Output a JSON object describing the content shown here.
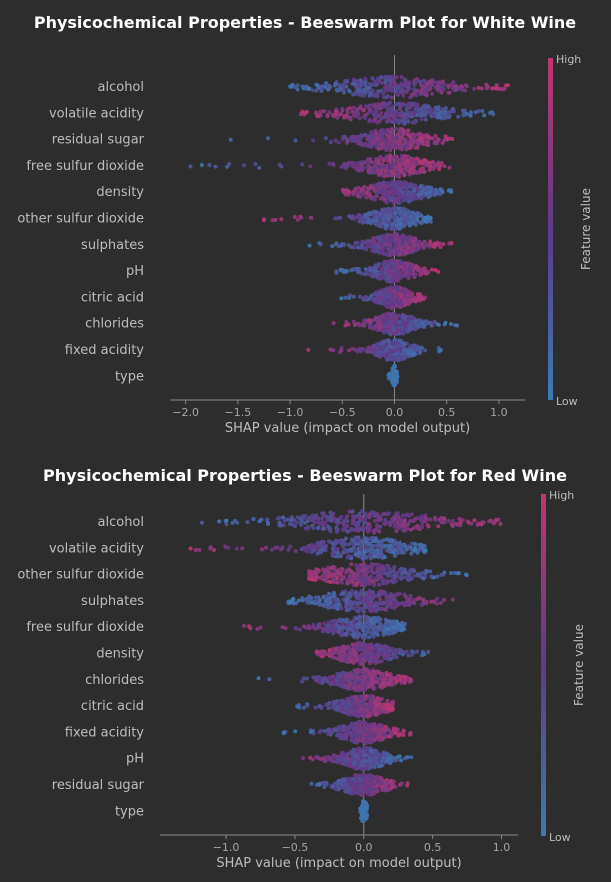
{
  "chart_data": [
    {
      "type": "scatter",
      "subtype": "beeswarm",
      "title": "Physicochemical Properties - Beeswarm Plot for White Wine",
      "xlabel": "SHAP value (impact on model output)",
      "xlim": [
        -2.15,
        1.25
      ],
      "xticks": [
        -2.0,
        -1.5,
        -1.0,
        -0.5,
        0.0,
        0.5,
        1.0
      ],
      "xtick_labels": [
        "−2.0",
        "−1.5",
        "−1.0",
        "−0.5",
        "0.0",
        "0.5",
        "1.0"
      ],
      "colorbar": {
        "high": "High",
        "low": "Low",
        "label": "Feature value",
        "low_color": "#3d7ab3",
        "mid_color": "#5d3a87",
        "high_color": "#c2366f"
      },
      "features": [
        {
          "name": "alcohol",
          "min": -1.0,
          "max": 1.1,
          "spread": 0.4,
          "dir": 1
        },
        {
          "name": "volatile acidity",
          "min": -0.9,
          "max": 0.95,
          "spread": 0.35,
          "dir": -1
        },
        {
          "name": "residual sugar",
          "min": -1.6,
          "max": 0.6,
          "spread": 0.25,
          "dir": 1
        },
        {
          "name": "free sulfur dioxide",
          "min": -2.0,
          "max": 0.55,
          "spread": 0.22,
          "dir": 1
        },
        {
          "name": "density",
          "min": -0.5,
          "max": 0.55,
          "spread": 0.22,
          "dir": -1
        },
        {
          "name": "other sulfur dioxide",
          "min": -1.4,
          "max": 0.35,
          "spread": 0.18,
          "dir": -1
        },
        {
          "name": "sulphates",
          "min": -0.9,
          "max": 0.6,
          "spread": 0.18,
          "dir": 1
        },
        {
          "name": "pH",
          "min": -0.6,
          "max": 0.45,
          "spread": 0.15,
          "dir": 1
        },
        {
          "name": "citric acid",
          "min": -0.55,
          "max": 0.3,
          "spread": 0.12,
          "dir": 1
        },
        {
          "name": "chlorides",
          "min": -0.6,
          "max": 0.6,
          "spread": 0.15,
          "dir": -1
        },
        {
          "name": "fixed acidity",
          "min": -0.85,
          "max": 0.45,
          "spread": 0.13,
          "dir": -1
        },
        {
          "name": "type",
          "min": -0.06,
          "max": 0.03,
          "spread": 0.02,
          "dir": 0
        }
      ]
    },
    {
      "type": "scatter",
      "subtype": "beeswarm",
      "title": "Physicochemical Properties - Beeswarm Plot for Red Wine",
      "xlabel": "SHAP value (impact on model output)",
      "xlim": [
        -1.48,
        1.12
      ],
      "xticks": [
        -1.0,
        -0.5,
        0.0,
        0.5,
        1.0
      ],
      "xtick_labels": [
        "−1.0",
        "−0.5",
        "0.0",
        "0.5",
        "1.0"
      ],
      "colorbar": {
        "high": "High",
        "low": "Low",
        "label": "Feature value",
        "low_color": "#3d7ab3",
        "mid_color": "#5d3a87",
        "high_color": "#c2366f"
      },
      "features": [
        {
          "name": "alcohol",
          "min": -1.25,
          "max": 1.0,
          "spread": 0.4,
          "dir": 1
        },
        {
          "name": "volatile acidity",
          "min": -1.35,
          "max": 0.45,
          "spread": 0.25,
          "dir": -1
        },
        {
          "name": "other sulfur dioxide",
          "min": -0.4,
          "max": 0.78,
          "spread": 0.25,
          "dir": -1
        },
        {
          "name": "sulphates",
          "min": -0.55,
          "max": 0.75,
          "spread": 0.25,
          "dir": 1
        },
        {
          "name": "free sulfur dioxide",
          "min": -0.88,
          "max": 0.3,
          "spread": 0.18,
          "dir": -1
        },
        {
          "name": "density",
          "min": -0.35,
          "max": 0.58,
          "spread": 0.15,
          "dir": -1
        },
        {
          "name": "chlorides",
          "min": -0.82,
          "max": 0.35,
          "spread": 0.15,
          "dir": 1
        },
        {
          "name": "citric acid",
          "min": -0.5,
          "max": 0.22,
          "spread": 0.13,
          "dir": 1
        },
        {
          "name": "fixed acidity",
          "min": -0.6,
          "max": 0.35,
          "spread": 0.13,
          "dir": 1
        },
        {
          "name": "pH",
          "min": -0.55,
          "max": 0.35,
          "spread": 0.12,
          "dir": -1
        },
        {
          "name": "residual sugar",
          "min": -0.45,
          "max": 0.32,
          "spread": 0.12,
          "dir": 1
        },
        {
          "name": "type",
          "min": -0.05,
          "max": 0.03,
          "spread": 0.02,
          "dir": 0
        }
      ]
    }
  ]
}
